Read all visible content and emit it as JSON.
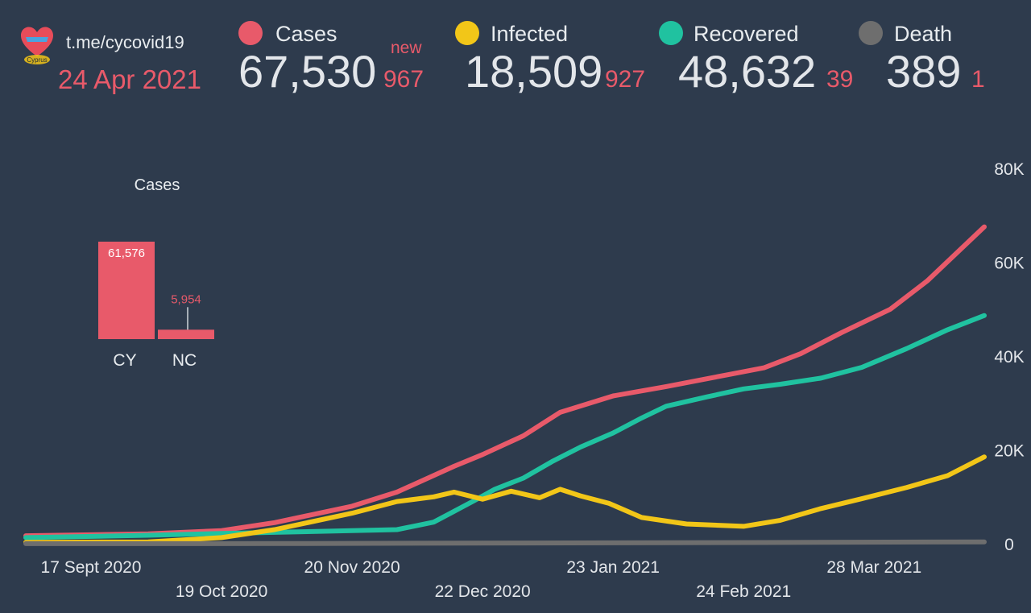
{
  "header": {
    "channel": "t.me/cycovid19",
    "date": "24 Apr 2021",
    "new_label": "new",
    "logo_text": "Cyprus"
  },
  "stats": {
    "cases": {
      "label": "Cases",
      "total": "67,530",
      "new": "967",
      "color": "#e85a6a"
    },
    "infected": {
      "label": "Infected",
      "total": "18,509",
      "new": "927",
      "color": "#f2c618"
    },
    "recovered": {
      "label": "Recovered",
      "total": "48,632",
      "new": "39",
      "color": "#20c2a0"
    },
    "death": {
      "label": "Death",
      "total": "389",
      "new": "1",
      "color": "#6e6e6e"
    }
  },
  "chart_data": [
    {
      "type": "bar",
      "title": "Cases",
      "categories": [
        "CY",
        "NC"
      ],
      "values": [
        61576,
        5954
      ],
      "value_labels": [
        "61,576",
        "5,954"
      ],
      "color": "#e85a6a"
    },
    {
      "type": "line",
      "y_axis_position": "right",
      "ylim": [
        0,
        80000
      ],
      "y_ticks": [
        0,
        20000,
        40000,
        60000,
        80000
      ],
      "y_tick_labels": [
        "0",
        "20K",
        "40K",
        "60K",
        "80K"
      ],
      "x_range": [
        "2020-09-01",
        "2021-04-24"
      ],
      "x_ticks": [
        {
          "date": "2020-09-17",
          "label": "17 Sept 2020",
          "row": 1
        },
        {
          "date": "2020-10-19",
          "label": "19 Oct 2020",
          "row": 2
        },
        {
          "date": "2020-11-20",
          "label": "20 Nov 2020",
          "row": 1
        },
        {
          "date": "2020-12-22",
          "label": "22 Dec 2020",
          "row": 2
        },
        {
          "date": "2021-01-23",
          "label": "23 Jan 2021",
          "row": 1
        },
        {
          "date": "2021-02-24",
          "label": "24 Feb 2021",
          "row": 2
        },
        {
          "date": "2021-03-28",
          "label": "28 Mar 2021",
          "row": 1
        }
      ],
      "series": [
        {
          "color": "#e85a6a",
          "points": [
            [
              "2020-09-01",
              1700
            ],
            [
              "2020-09-17",
              1900
            ],
            [
              "2020-10-01",
              2100
            ],
            [
              "2020-10-19",
              2800
            ],
            [
              "2020-11-01",
              4500
            ],
            [
              "2020-11-20",
              8000
            ],
            [
              "2020-12-01",
              11000
            ],
            [
              "2020-12-15",
              16500
            ],
            [
              "2020-12-22",
              19000
            ],
            [
              "2021-01-01",
              23000
            ],
            [
              "2021-01-10",
              28000
            ],
            [
              "2021-01-23",
              31500
            ],
            [
              "2021-02-05",
              33500
            ],
            [
              "2021-02-20",
              36000
            ],
            [
              "2021-03-01",
              37500
            ],
            [
              "2021-03-10",
              40500
            ],
            [
              "2021-03-20",
              45000
            ],
            [
              "2021-04-01",
              50000
            ],
            [
              "2021-04-10",
              56000
            ],
            [
              "2021-04-24",
              67530
            ]
          ]
        },
        {
          "color": "#20c2a0",
          "points": [
            [
              "2020-09-01",
              1300
            ],
            [
              "2020-10-01",
              1800
            ],
            [
              "2020-10-19",
              2200
            ],
            [
              "2020-11-10",
              2600
            ],
            [
              "2020-12-01",
              3000
            ],
            [
              "2020-12-10",
              4600
            ],
            [
              "2020-12-15",
              6900
            ],
            [
              "2020-12-20",
              9200
            ],
            [
              "2020-12-25",
              11600
            ],
            [
              "2021-01-01",
              14000
            ],
            [
              "2021-01-08",
              17500
            ],
            [
              "2021-01-15",
              20600
            ],
            [
              "2021-01-23",
              23600
            ],
            [
              "2021-01-30",
              26800
            ],
            [
              "2021-02-05",
              29300
            ],
            [
              "2021-02-15",
              31300
            ],
            [
              "2021-02-24",
              33000
            ],
            [
              "2021-03-05",
              34000
            ],
            [
              "2021-03-15",
              35300
            ],
            [
              "2021-03-25",
              37600
            ],
            [
              "2021-04-05",
              41600
            ],
            [
              "2021-04-15",
              45600
            ],
            [
              "2021-04-24",
              48632
            ]
          ]
        },
        {
          "color": "#f2c618",
          "points": [
            [
              "2020-09-01",
              300
            ],
            [
              "2020-10-01",
              400
            ],
            [
              "2020-10-19",
              1300
            ],
            [
              "2020-11-01",
              3000
            ],
            [
              "2020-11-20",
              6500
            ],
            [
              "2020-12-01",
              9000
            ],
            [
              "2020-12-10",
              10000
            ],
            [
              "2020-12-15",
              11000
            ],
            [
              "2020-12-22",
              9500
            ],
            [
              "2020-12-29",
              11200
            ],
            [
              "2021-01-05",
              9800
            ],
            [
              "2021-01-10",
              11600
            ],
            [
              "2021-01-15",
              10200
            ],
            [
              "2021-01-22",
              8600
            ],
            [
              "2021-01-30",
              5600
            ],
            [
              "2021-02-10",
              4200
            ],
            [
              "2021-02-24",
              3700
            ],
            [
              "2021-03-05",
              5000
            ],
            [
              "2021-03-15",
              7500
            ],
            [
              "2021-03-25",
              9600
            ],
            [
              "2021-04-05",
              12000
            ],
            [
              "2021-04-15",
              14500
            ],
            [
              "2021-04-24",
              18509
            ]
          ]
        },
        {
          "color": "#6e6e6e",
          "points": [
            [
              "2020-09-01",
              20
            ],
            [
              "2020-11-01",
              30
            ],
            [
              "2021-01-01",
              150
            ],
            [
              "2021-03-01",
              250
            ],
            [
              "2021-04-24",
              389
            ]
          ]
        }
      ]
    }
  ]
}
